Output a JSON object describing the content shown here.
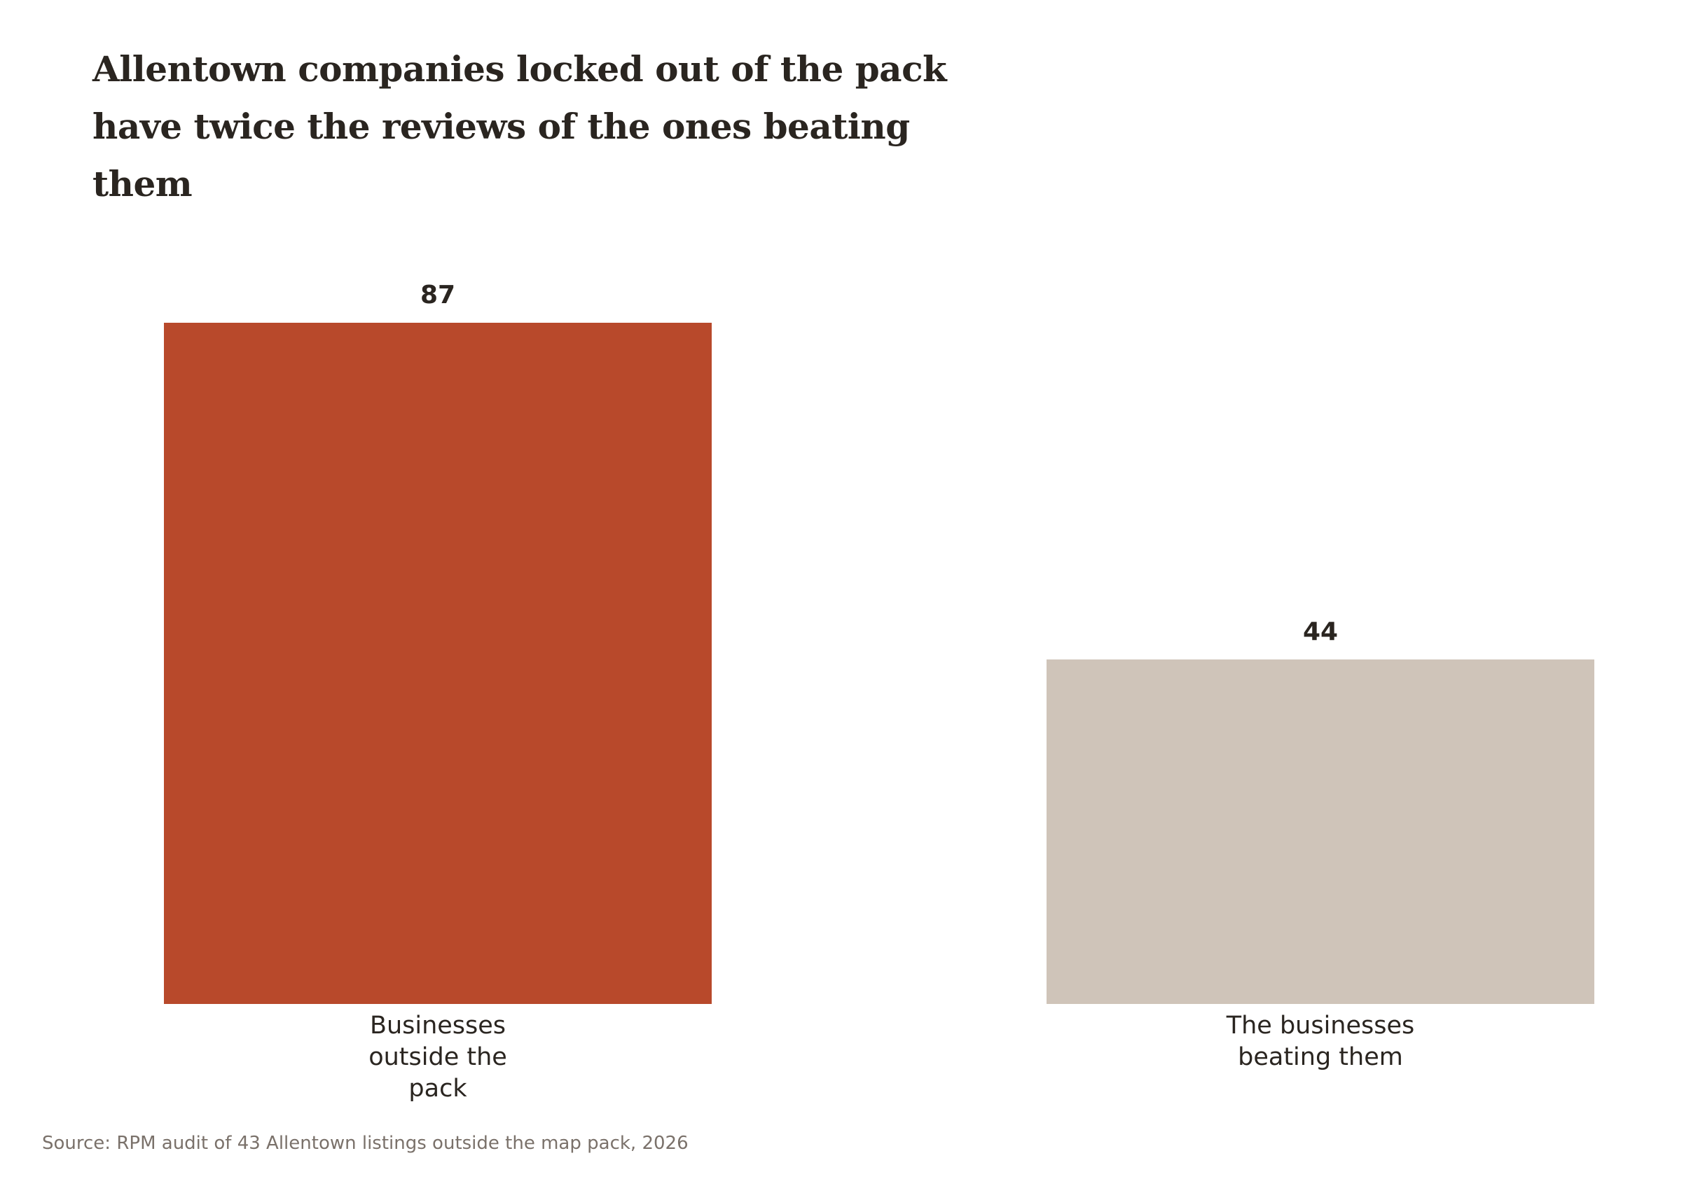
{
  "chart_data": {
    "type": "bar",
    "title": "Allentown companies locked out of the pack have twice the reviews of the ones beating them",
    "categories": [
      "Businesses outside the pack",
      "The businesses beating them"
    ],
    "values": [
      87,
      44
    ],
    "colors": [
      "#b8492b",
      "#cfc4b9"
    ],
    "value_labels": [
      "87",
      "44"
    ],
    "xlabel": "",
    "ylabel": "",
    "ylim": [
      0,
      87
    ],
    "grid": false,
    "legend": "none",
    "source": "Source: RPM audit of 43 Allentown listings outside the map pack, 2026"
  }
}
